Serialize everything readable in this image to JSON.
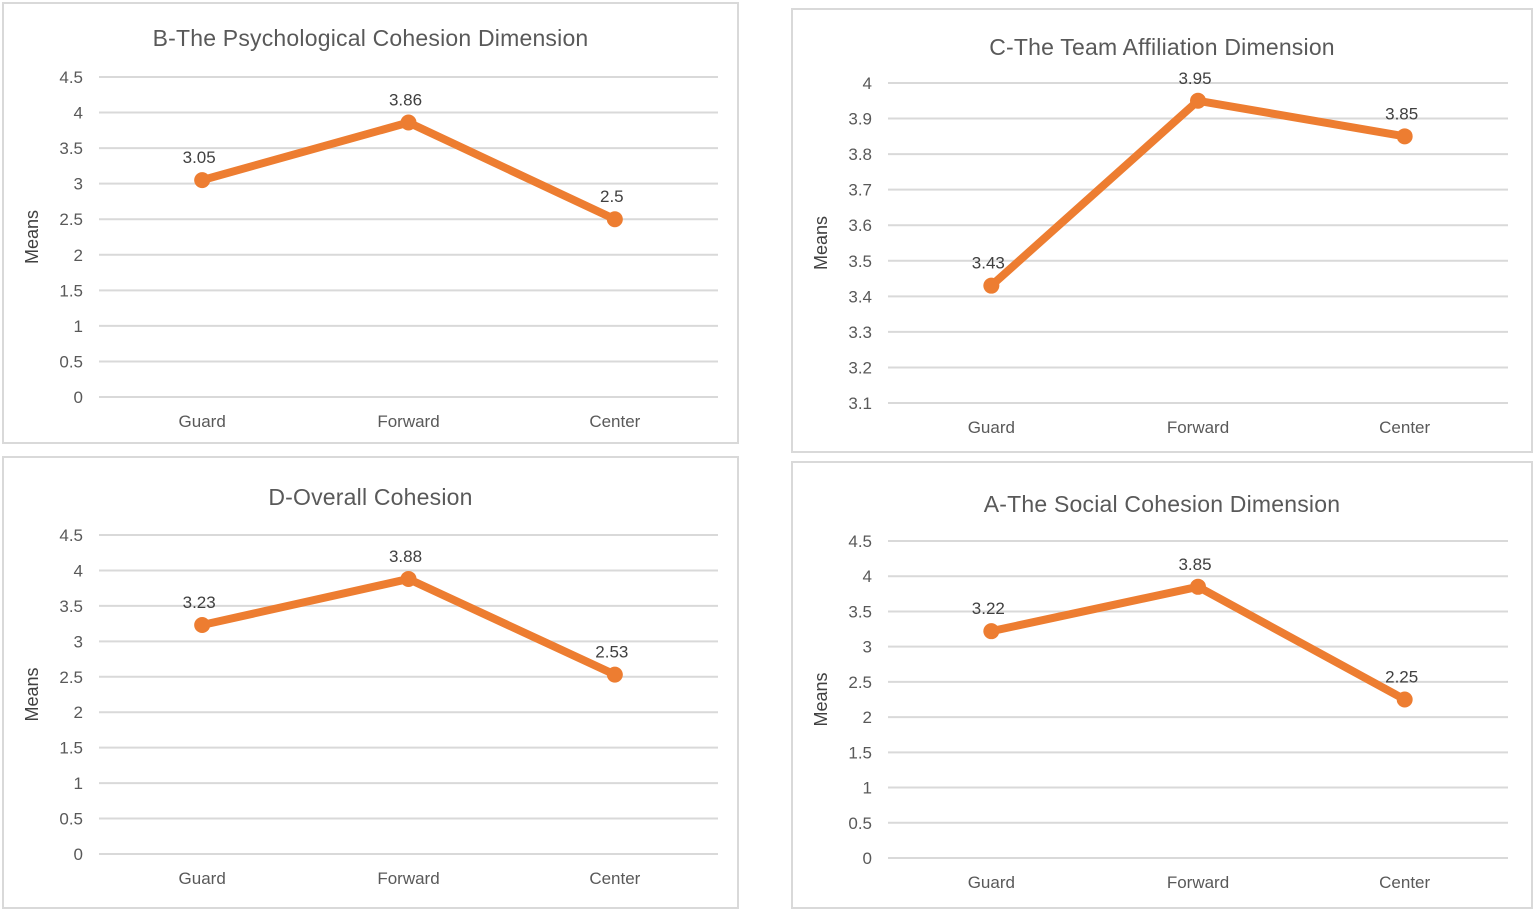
{
  "colors": {
    "accent_line": "#ED7D31",
    "gridline": "#D9D9D9",
    "panel_border": "#D9D9D9",
    "title_text": "#595959",
    "tick_text": "#595959",
    "category_text": "#595959",
    "data_label_text": "#404040",
    "axis_label_text": "#404040",
    "background": "#FFFFFF"
  },
  "chart_data": [
    {
      "type": "line",
      "title": "B-The Psychological Cohesion Dimension",
      "xlabel": "",
      "ylabel": "Means",
      "categories": [
        "Guard",
        "Forward",
        "Center"
      ],
      "series": [
        {
          "name": "Means",
          "values": [
            3.05,
            3.86,
            2.5
          ]
        }
      ],
      "data_labels": [
        "3.05",
        "3.86",
        "2.5"
      ],
      "ylim": [
        0,
        4.5
      ],
      "ytick_step": 0.5,
      "grid": true,
      "legend": "none",
      "marker": "circle"
    },
    {
      "type": "line",
      "title": "C-The Team Affiliation Dimension",
      "xlabel": "",
      "ylabel": "Means",
      "categories": [
        "Guard",
        "Forward",
        "Center"
      ],
      "series": [
        {
          "name": "Means",
          "values": [
            3.43,
            3.95,
            3.85
          ]
        }
      ],
      "data_labels": [
        "3.43",
        "3.95",
        "3.85"
      ],
      "ylim": [
        3.1,
        4.0
      ],
      "ytick_step": 0.1,
      "grid": true,
      "legend": "none",
      "marker": "circle"
    },
    {
      "type": "line",
      "title": "D-Overall Cohesion",
      "xlabel": "",
      "ylabel": "Means",
      "categories": [
        "Guard",
        "Forward",
        "Center"
      ],
      "series": [
        {
          "name": "Means",
          "values": [
            3.23,
            3.88,
            2.53
          ]
        }
      ],
      "data_labels": [
        "3.23",
        "3.88",
        "2.53"
      ],
      "ylim": [
        0,
        4.5
      ],
      "ytick_step": 0.5,
      "grid": true,
      "legend": "none",
      "marker": "circle"
    },
    {
      "type": "line",
      "title": "A-The Social Cohesion Dimension",
      "xlabel": "",
      "ylabel": "Means",
      "categories": [
        "Guard",
        "Forward",
        "Center"
      ],
      "series": [
        {
          "name": "Means",
          "values": [
            3.22,
            3.85,
            2.25
          ]
        }
      ],
      "data_labels": [
        "3.22",
        "3.85",
        "2.25"
      ],
      "ylim": [
        0,
        4.5
      ],
      "ytick_step": 0.5,
      "grid": true,
      "legend": "none",
      "marker": "circle"
    }
  ]
}
